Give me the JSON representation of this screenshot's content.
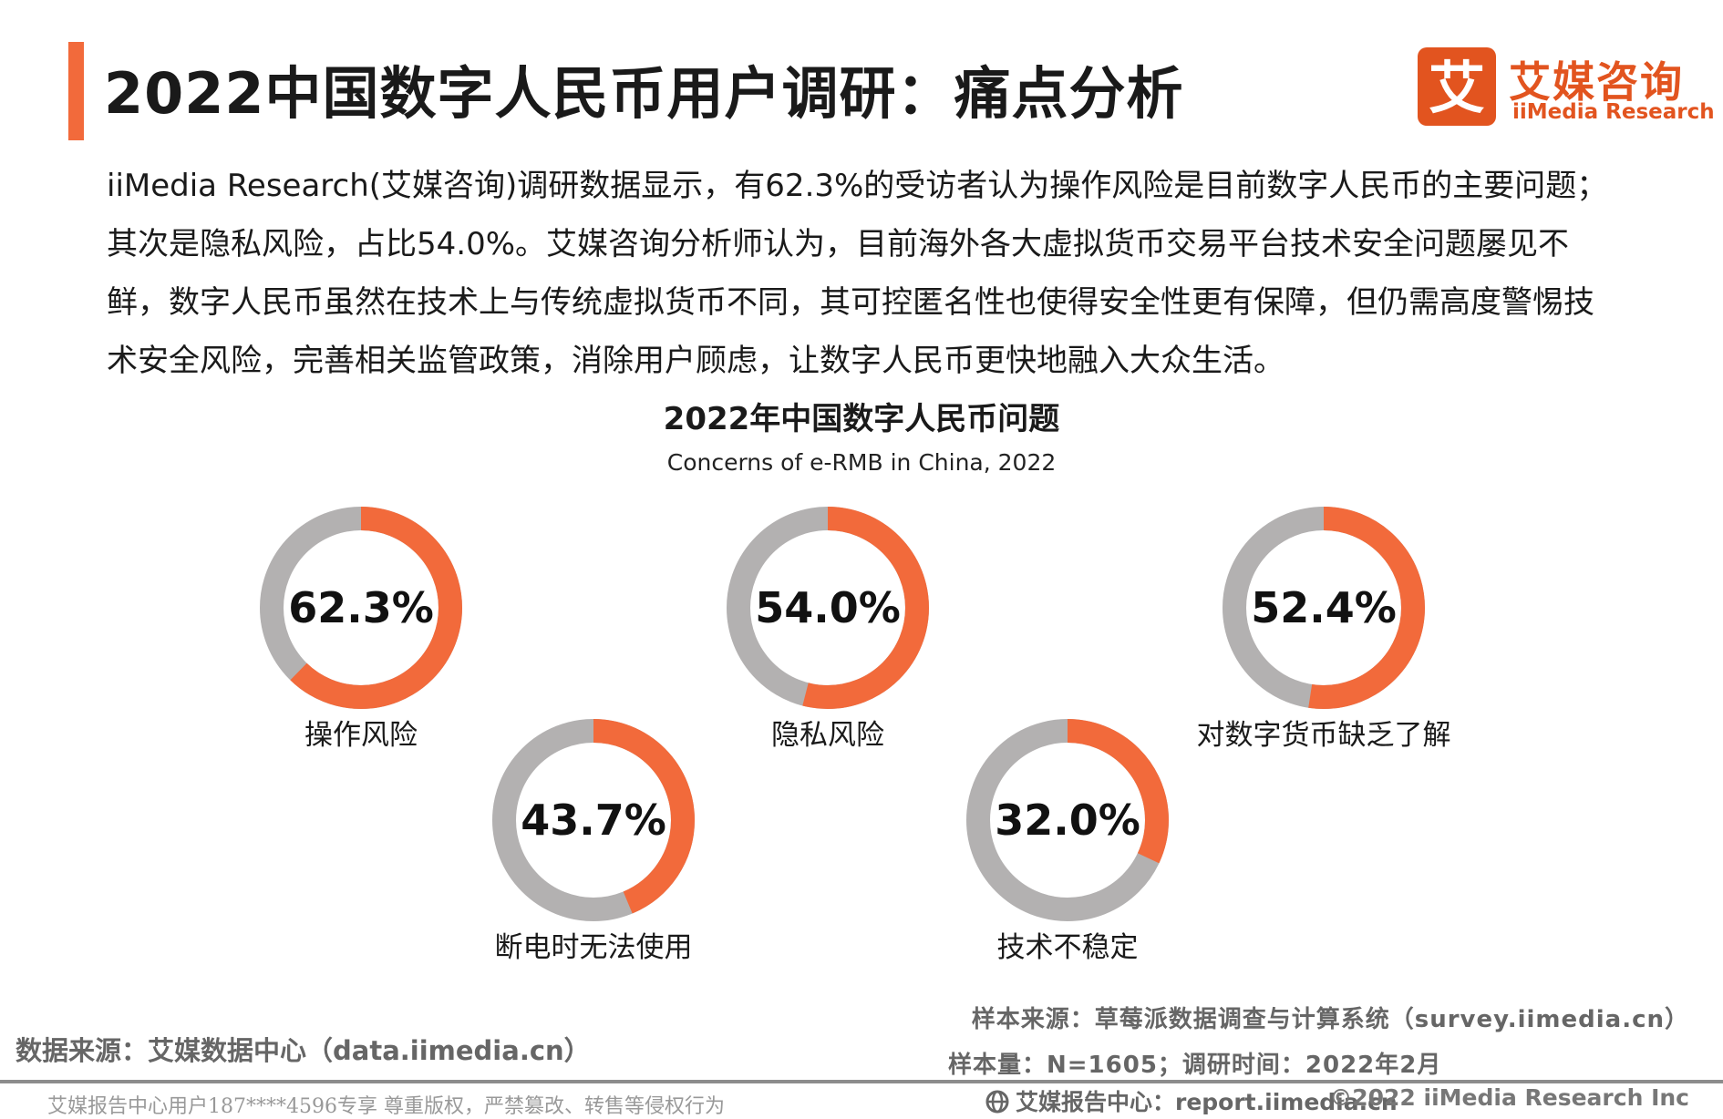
{
  "header": {
    "title": "2022中国数字人民币用户调研：痛点分析",
    "accent_color": "#f26a3b"
  },
  "logo": {
    "glyph": "艾",
    "name_cn": "艾媒咨询",
    "name_en": "iiMedia Research",
    "brand_color": "#e2541f"
  },
  "description": "iiMedia Research(艾媒咨询)调研数据显示，有62.3%的受访者认为操作风险是目前数字人民币的主要问题；其次是隐私风险，占比54.0%。艾媒咨询分析师认为，目前海外各大虚拟货币交易平台技术安全问题屡见不鲜，数字人民币虽然在技术上与传统虚拟货币不同，其可控匿名性也使得安全性更有保障，但仍需高度警惕技术安全风险，完善相关监管政策，消除用户顾虑，让数字人民币更快地融入大众生活。",
  "chart_data": {
    "type": "pie",
    "variant": "donut",
    "title": "2022年中国数字人民币问题",
    "subtitle": "Concerns of e-RMB in China, 2022",
    "unit": "%",
    "categories": [
      "操作风险",
      "隐私风险",
      "对数字货币缺乏了解",
      "断电时无法使用",
      "技术不稳定"
    ],
    "values": [
      62.3,
      54.0,
      52.4,
      43.7,
      32.0
    ],
    "value_labels": [
      "62.3%",
      "54.0%",
      "52.4%",
      "43.7%",
      "32.0%"
    ],
    "colors": {
      "filled": "#f26a3b",
      "remainder": "#b3b1b1"
    }
  },
  "sources": {
    "data_source": "数据来源：艾媒数据中心（data.iimedia.cn）",
    "sample_source": "样本来源：草莓派数据调查与计算系统（survey.iimedia.cn）",
    "sample_size": "样本量：N=1605；调研时间：2022年2月"
  },
  "footer": {
    "notice": "艾媒报告中心用户187****4596专享 尊重版权，严禁篡改、转售等侵权行为",
    "report_center": "艾媒报告中心：report.iimedia.cn",
    "copyright": "©2022 iiMedia Research Inc",
    "globe_icon": "globe-icon"
  }
}
